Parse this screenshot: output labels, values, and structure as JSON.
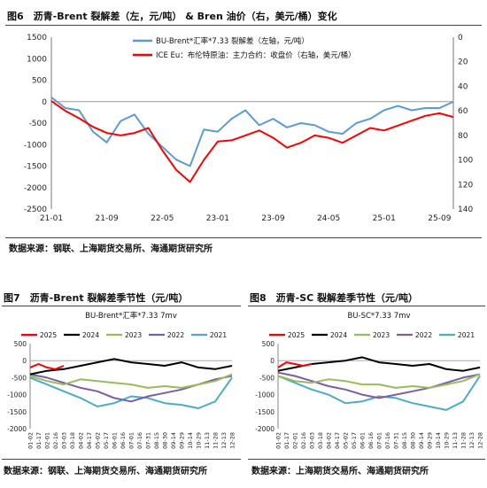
{
  "figure6": {
    "title": "图6　沥青-Brent 裂解差（左，元/吨） & Bren 油价（右，美元/桶）变化",
    "source": "数据来源：钢联、上海期货交易所、海通期货研究所"
  },
  "figure7": {
    "title": "图7　沥青-Brent 裂解差季节性（元/吨）",
    "source": "数据来源：钢联、上海期货交易所、海通期货研究所"
  },
  "figure8": {
    "title": "图8　沥青-SC 裂解差季节性（元/吨）",
    "source": "数据来源：上海期货交易所、海通期货研究所"
  },
  "colors": {
    "blue": "#5b9bd5",
    "red": "#ff0000",
    "black": "#000000",
    "green": "#9bbb59",
    "purple": "#7b5ea7",
    "cyan": "#4bacc6"
  },
  "chart_data": [
    {
      "id": "fig6",
      "type": "line",
      "title": "",
      "x_ticks": [
        "21-01",
        "21-09",
        "22-05",
        "23-01",
        "23-09",
        "24-05",
        "25-01",
        "25-09"
      ],
      "ylim_left": [
        -2500,
        1500
      ],
      "yticks_left": [
        1500,
        1000,
        500,
        0,
        -500,
        -1000,
        -1500,
        -2000,
        -2500
      ],
      "ylim_right": [
        0,
        140
      ],
      "yticks_right": [
        0,
        20,
        40,
        60,
        80,
        100,
        120,
        140
      ],
      "right_axis_inverted": true,
      "grid": false,
      "legend_position": "top-center",
      "series": [
        {
          "name": "BU-Brent*汇率*7.33 裂解差（左轴，元/吨）",
          "axis": "left",
          "color_key": "blue",
          "x": [
            0,
            2,
            4,
            6,
            8,
            10,
            12,
            14,
            16,
            18,
            20,
            22,
            24,
            26,
            28,
            30,
            32,
            34,
            36,
            38,
            40,
            42,
            44,
            46,
            48,
            50,
            52,
            54,
            56,
            58
          ],
          "values": [
            100,
            -150,
            -200,
            -700,
            -950,
            -450,
            -300,
            -750,
            -1050,
            -1350,
            -1500,
            -650,
            -700,
            -400,
            -200,
            -550,
            -400,
            -600,
            -500,
            -550,
            -700,
            -750,
            -500,
            -400,
            -200,
            -100,
            -200,
            -150,
            -150,
            0
          ]
        },
        {
          "name": "ICE Eu：布伦特原油：主力合约：收盘价（右轴，美元/桶）",
          "axis": "right",
          "color_key": "red",
          "x": [
            0,
            2,
            4,
            6,
            8,
            10,
            12,
            14,
            16,
            18,
            20,
            22,
            24,
            26,
            28,
            30,
            32,
            34,
            36,
            38,
            40,
            42,
            44,
            46,
            48,
            50,
            52,
            54,
            56,
            58
          ],
          "values": [
            52,
            60,
            66,
            73,
            78,
            80,
            78,
            74,
            92,
            108,
            118,
            100,
            85,
            84,
            80,
            76,
            82,
            90,
            86,
            80,
            82,
            86,
            80,
            74,
            76,
            72,
            68,
            64,
            62,
            65
          ]
        }
      ]
    },
    {
      "id": "fig7",
      "type": "line",
      "title": "BU-Brent*汇率*7.33 7mv",
      "x_ticks": [
        "01-02",
        "01-17",
        "02-01",
        "02-16",
        "03-03",
        "03-18",
        "04-02",
        "04-17",
        "05-02",
        "05-17",
        "06-01",
        "06-16",
        "07-01",
        "07-16",
        "07-31",
        "08-15",
        "08-30",
        "09-14",
        "09-29",
        "10-14",
        "10-29",
        "11-13",
        "11-28",
        "12-13",
        "12-28"
      ],
      "ylim": [
        -2000,
        500
      ],
      "yticks": [
        500,
        0,
        -500,
        -1000,
        -1500,
        -2000
      ],
      "grid": false,
      "legend_position": "top",
      "series": [
        {
          "name": "2025",
          "color_key": "red",
          "x": [
            0,
            1,
            2,
            3,
            4
          ],
          "values": [
            -200,
            -100,
            -200,
            -250,
            -150
          ]
        },
        {
          "name": "2024",
          "color_key": "black",
          "x": [
            0,
            2,
            4,
            6,
            8,
            10,
            12,
            14,
            16,
            18,
            20,
            22,
            24
          ],
          "values": [
            -400,
            -300,
            -250,
            -150,
            -50,
            50,
            -50,
            -100,
            -150,
            -50,
            -200,
            -250,
            -150
          ]
        },
        {
          "name": "2023",
          "color_key": "green",
          "x": [
            0,
            2,
            4,
            6,
            8,
            10,
            12,
            14,
            16,
            18,
            20,
            22,
            24
          ],
          "values": [
            -450,
            -600,
            -700,
            -550,
            -600,
            -650,
            -700,
            -800,
            -750,
            -800,
            -700,
            -600,
            -400
          ]
        },
        {
          "name": "2022",
          "color_key": "purple",
          "x": [
            0,
            2,
            4,
            6,
            8,
            10,
            12,
            14,
            16,
            18,
            20,
            22,
            24
          ],
          "values": [
            -400,
            -500,
            -650,
            -800,
            -900,
            -1100,
            -1200,
            -1050,
            -950,
            -850,
            -700,
            -550,
            -450
          ]
        },
        {
          "name": "2021",
          "color_key": "cyan",
          "x": [
            0,
            2,
            4,
            6,
            8,
            10,
            12,
            14,
            16,
            18,
            20,
            22,
            24
          ],
          "values": [
            -500,
            -700,
            -900,
            -1100,
            -1350,
            -1250,
            -1050,
            -1100,
            -1250,
            -1300,
            -1400,
            -1200,
            -500
          ]
        }
      ]
    },
    {
      "id": "fig8",
      "type": "line",
      "title": "BU-SC*7.33 7mv",
      "x_ticks": [
        "01-02",
        "01-17",
        "02-01",
        "02-16",
        "03-03",
        "03-18",
        "04-02",
        "04-17",
        "05-02",
        "05-17",
        "06-01",
        "06-16",
        "07-01",
        "07-16",
        "07-31",
        "08-15",
        "08-30",
        "09-14",
        "09-29",
        "10-14",
        "10-29",
        "11-13",
        "11-28",
        "12-13",
        "12-28"
      ],
      "ylim": [
        -2000,
        500
      ],
      "yticks": [
        500,
        0,
        -500,
        -1000,
        -1500,
        -2000
      ],
      "grid": false,
      "legend_position": "top",
      "series": [
        {
          "name": "2025",
          "color_key": "red",
          "x": [
            0,
            1,
            2,
            3,
            4
          ],
          "values": [
            -200,
            -50,
            -100,
            -150,
            -100
          ]
        },
        {
          "name": "2024",
          "color_key": "black",
          "x": [
            0,
            2,
            4,
            6,
            8,
            10,
            12,
            14,
            16,
            18,
            20,
            22,
            24
          ],
          "values": [
            -300,
            -200,
            -100,
            -50,
            0,
            100,
            -50,
            -100,
            -150,
            -100,
            -250,
            -300,
            -200
          ]
        },
        {
          "name": "2023",
          "color_key": "green",
          "x": [
            0,
            2,
            4,
            6,
            8,
            10,
            12,
            14,
            16,
            18,
            20,
            22,
            24
          ],
          "values": [
            -450,
            -600,
            -650,
            -550,
            -600,
            -700,
            -700,
            -800,
            -750,
            -800,
            -700,
            -600,
            -400
          ]
        },
        {
          "name": "2022",
          "color_key": "purple",
          "x": [
            0,
            2,
            4,
            6,
            8,
            10,
            12,
            14,
            16,
            18,
            20,
            22,
            24
          ],
          "values": [
            -350,
            -450,
            -600,
            -750,
            -850,
            -1000,
            -1100,
            -1000,
            -900,
            -800,
            -650,
            -500,
            -400
          ]
        },
        {
          "name": "2021",
          "color_key": "cyan",
          "x": [
            0,
            2,
            4,
            6,
            8,
            10,
            12,
            14,
            16,
            18,
            20,
            22,
            24
          ],
          "values": [
            -450,
            -650,
            -850,
            -1000,
            -1250,
            -1200,
            -1050,
            -1100,
            -1250,
            -1350,
            -1450,
            -1200,
            -450
          ]
        }
      ]
    }
  ]
}
